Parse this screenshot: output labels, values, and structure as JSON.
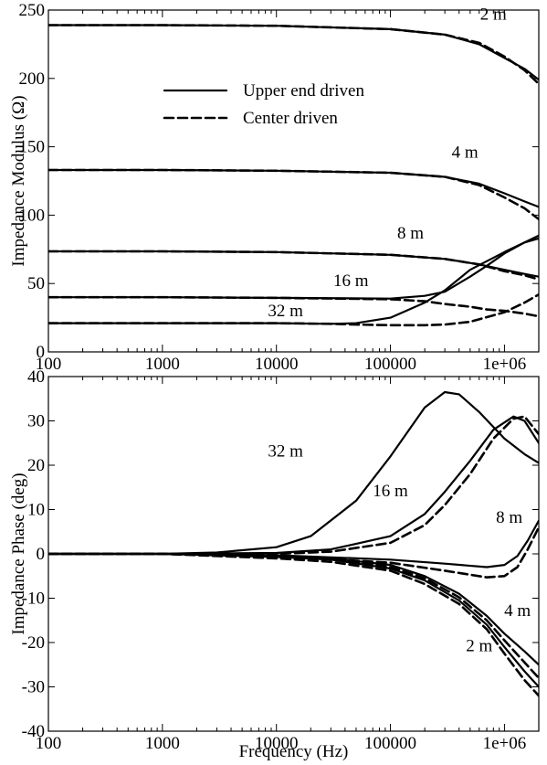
{
  "chart_data": [
    {
      "type": "line",
      "ylabel": "Impedance Modulus (Ω)",
      "xlabel": "",
      "x_scale": "log",
      "xlim": [
        100,
        2000000
      ],
      "ylim": [
        0,
        250
      ],
      "xticks": [
        100,
        1000,
        10000,
        100000,
        1000000
      ],
      "xtick_labels": [
        "100",
        "1000",
        "10000",
        "100000",
        "1e+06"
      ],
      "yticks": [
        0,
        50,
        100,
        150,
        200,
        250
      ],
      "ytick_labels": [
        "0",
        "50",
        "100",
        "150",
        "200",
        "250"
      ],
      "legend": {
        "placement": "upper-center",
        "entries": [
          {
            "label": "Upper end driven",
            "style": "solid"
          },
          {
            "label": "Center driven",
            "style": "dashed"
          }
        ]
      },
      "annotations": [
        {
          "text": "2 m",
          "x": 800000,
          "y": 243
        },
        {
          "text": "4 m",
          "x": 450000,
          "y": 142
        },
        {
          "text": "8 m",
          "x": 150000,
          "y": 83
        },
        {
          "text": "16 m",
          "x": 45000,
          "y": 48
        },
        {
          "text": "32 m",
          "x": 12000,
          "y": 26
        }
      ],
      "series": [
        {
          "label": "2 m",
          "style": "solid",
          "x": [
            100,
            1000,
            10000,
            100000,
            300000,
            600000,
            1000000,
            1500000,
            2000000
          ],
          "y": [
            239,
            239,
            238.5,
            236,
            232,
            225,
            215,
            207,
            199
          ]
        },
        {
          "label": "2 m",
          "style": "dashed",
          "x": [
            100,
            1000,
            10000,
            100000,
            300000,
            600000,
            1000000,
            1500000,
            2000000
          ],
          "y": [
            239,
            239,
            238.5,
            236,
            232,
            226,
            216,
            206,
            196
          ]
        },
        {
          "label": "4 m",
          "style": "solid",
          "x": [
            100,
            1000,
            10000,
            100000,
            300000,
            600000,
            1000000,
            1500000,
            2000000
          ],
          "y": [
            133,
            133,
            132.5,
            131,
            128,
            123,
            116,
            110,
            106
          ]
        },
        {
          "label": "4 m",
          "style": "dashed",
          "x": [
            100,
            1000,
            10000,
            100000,
            300000,
            600000,
            1000000,
            1500000,
            2000000
          ],
          "y": [
            133,
            133,
            132.5,
            131,
            128,
            122,
            113,
            105,
            97
          ]
        },
        {
          "label": "8 m",
          "style": "solid",
          "x": [
            100,
            1000,
            10000,
            100000,
            300000,
            600000,
            1000000,
            1500000,
            2000000
          ],
          "y": [
            73.5,
            73.5,
            73,
            71,
            68,
            64,
            60,
            57,
            55
          ]
        },
        {
          "label": "8 m",
          "style": "dashed",
          "x": [
            100,
            1000,
            10000,
            100000,
            300000,
            600000,
            1000000,
            1500000,
            2000000
          ],
          "y": [
            73.5,
            73.5,
            73,
            71,
            68,
            64,
            59,
            56,
            53
          ]
        },
        {
          "label": "16 m",
          "style": "solid",
          "x": [
            100,
            1000,
            10000,
            100000,
            200000,
            300000,
            500000,
            700000,
            1000000,
            1500000,
            2000000
          ],
          "y": [
            40,
            40,
            39.5,
            39,
            41,
            44,
            55,
            63,
            72,
            80,
            85
          ]
        },
        {
          "label": "16 m",
          "style": "dashed",
          "x": [
            100,
            1000,
            10000,
            100000,
            200000,
            300000,
            500000,
            700000,
            1000000,
            1500000,
            2000000
          ],
          "y": [
            40,
            40,
            39.5,
            38.5,
            37,
            35,
            33,
            31,
            30,
            28,
            26
          ]
        },
        {
          "label": "32 m",
          "style": "solid",
          "x": [
            100,
            1000,
            10000,
            30000,
            50000,
            100000,
            200000,
            300000,
            500000,
            1000000,
            1500000,
            2000000
          ],
          "y": [
            21,
            21,
            21,
            20.5,
            21,
            25,
            36,
            45,
            60,
            73,
            80,
            83
          ]
        },
        {
          "label": "32 m",
          "style": "dashed",
          "x": [
            100,
            1000,
            10000,
            30000,
            50000,
            100000,
            200000,
            300000,
            500000,
            1000000,
            1500000,
            2000000
          ],
          "y": [
            21,
            21,
            21,
            20.5,
            20,
            19.5,
            19.5,
            20,
            22,
            29,
            36,
            42
          ]
        }
      ]
    },
    {
      "type": "line",
      "ylabel": "Impedance Phase (deg)",
      "xlabel": "Frequency (Hz)",
      "x_scale": "log",
      "xlim": [
        100,
        2000000
      ],
      "ylim": [
        -40,
        40
      ],
      "xticks": [
        100,
        1000,
        10000,
        100000,
        1000000
      ],
      "xtick_labels": [
        "100",
        "1000",
        "10000",
        "100000",
        "1e+06"
      ],
      "yticks": [
        -40,
        -30,
        -20,
        -10,
        0,
        10,
        20,
        30,
        40
      ],
      "ytick_labels": [
        "-40",
        "-30",
        "-20",
        "-10",
        "0",
        "10",
        "20",
        "30",
        "40"
      ],
      "annotations": [
        {
          "text": "32 m",
          "x": 12000,
          "y": 22
        },
        {
          "text": "16 m",
          "x": 100000,
          "y": 13
        },
        {
          "text": "8 m",
          "x": 1100000,
          "y": 7
        },
        {
          "text": "4 m",
          "x": 1300000,
          "y": -14
        },
        {
          "text": "2 m",
          "x": 600000,
          "y": -22
        }
      ],
      "series": [
        {
          "label": "32 m",
          "style": "solid",
          "x": [
            100,
            1000,
            3000,
            10000,
            20000,
            50000,
            100000,
            200000,
            300000,
            400000,
            600000,
            1000000,
            1500000,
            2000000
          ],
          "y": [
            0,
            0,
            0.3,
            1.5,
            4,
            12,
            22,
            33,
            36.5,
            36,
            32,
            26,
            22.5,
            20.5
          ]
        },
        {
          "label": "16 m",
          "style": "solid",
          "x": [
            100,
            1000,
            10000,
            30000,
            100000,
            200000,
            300000,
            500000,
            800000,
            1200000,
            1500000,
            2000000
          ],
          "y": [
            0,
            0,
            0.2,
            1,
            4,
            9,
            14,
            21,
            28,
            31,
            30,
            25
          ]
        },
        {
          "label": "16 m",
          "style": "dashed",
          "x": [
            100,
            1000,
            10000,
            30000,
            100000,
            200000,
            300000,
            500000,
            800000,
            1200000,
            1500000,
            2000000
          ],
          "y": [
            0,
            0,
            0,
            0.5,
            2.5,
            6.5,
            11,
            18,
            26,
            30.5,
            31,
            27
          ]
        },
        {
          "label": "8 m",
          "style": "solid",
          "x": [
            100,
            1000,
            10000,
            100000,
            300000,
            700000,
            1000000,
            1300000,
            1600000,
            2000000
          ],
          "y": [
            0,
            0,
            -0.3,
            -1.3,
            -2.2,
            -3,
            -2.5,
            -0.5,
            3,
            7.5
          ]
        },
        {
          "label": "8 m",
          "style": "dashed",
          "x": [
            100,
            1000,
            10000,
            100000,
            300000,
            700000,
            1000000,
            1300000,
            1600000,
            2000000
          ],
          "y": [
            0,
            0,
            -0.5,
            -2,
            -3.8,
            -5.3,
            -5,
            -3,
            1,
            6
          ]
        },
        {
          "label": "4 m",
          "style": "solid",
          "x": [
            100,
            1000,
            10000,
            30000,
            100000,
            200000,
            400000,
            700000,
            1000000,
            1500000,
            2000000
          ],
          "y": [
            0,
            0,
            -0.4,
            -1,
            -2.5,
            -5,
            -9,
            -14,
            -18,
            -22,
            -25
          ]
        },
        {
          "label": "4 m",
          "style": "dashed",
          "x": [
            100,
            1000,
            10000,
            30000,
            100000,
            200000,
            400000,
            700000,
            1000000,
            1500000,
            2000000
          ],
          "y": [
            0,
            0,
            -0.6,
            -1.2,
            -3,
            -5.5,
            -9.8,
            -15,
            -19.5,
            -24.5,
            -28
          ]
        },
        {
          "label": "2 m",
          "style": "solid",
          "x": [
            100,
            1000,
            10000,
            30000,
            100000,
            200000,
            400000,
            700000,
            1000000,
            1500000,
            2000000
          ],
          "y": [
            0,
            0,
            -0.7,
            -1.3,
            -3.3,
            -6,
            -10.5,
            -16,
            -21,
            -26.5,
            -30
          ]
        },
        {
          "label": "2 m",
          "style": "dashed",
          "x": [
            100,
            1000,
            10000,
            30000,
            100000,
            200000,
            400000,
            700000,
            1000000,
            1500000,
            2000000
          ],
          "y": [
            0,
            0,
            -1,
            -1.8,
            -3.8,
            -6.8,
            -11.3,
            -17,
            -22.5,
            -28.5,
            -32
          ]
        }
      ]
    }
  ]
}
